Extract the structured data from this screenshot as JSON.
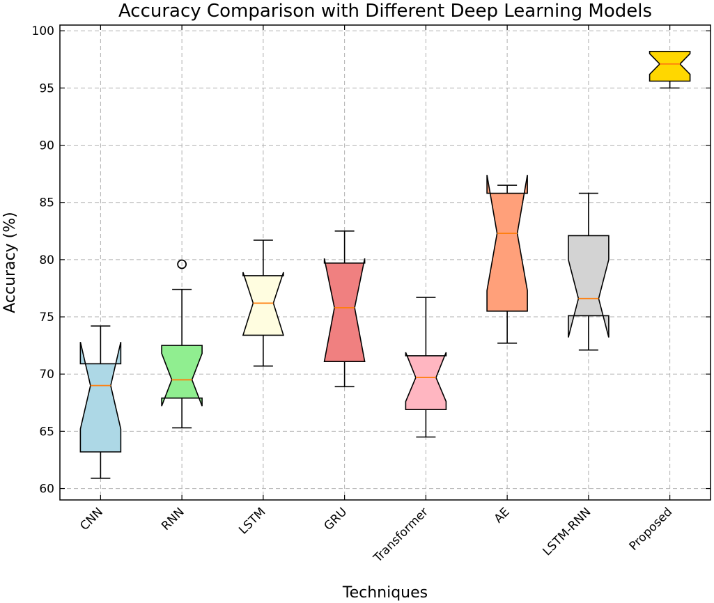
{
  "chart_data": {
    "type": "boxplot",
    "title": "Accuracy Comparison with Different Deep Learning Models",
    "xlabel": "Techniques",
    "ylabel": "Accuracy (%)",
    "ylim": [
      59,
      100.5
    ],
    "yticks": [
      60,
      65,
      70,
      75,
      80,
      85,
      90,
      95,
      100
    ],
    "grid": true,
    "notched": true,
    "categories": [
      "CNN",
      "RNN",
      "LSTM",
      "GRU",
      "Transformer",
      "AE",
      "LSTM-RNN",
      "Proposed"
    ],
    "boxes": [
      {
        "name": "CNN",
        "whisker_low": 60.9,
        "q1": 63.2,
        "notch_low": 65.2,
        "median": 69.0,
        "notch_high": 72.8,
        "q3": 70.9,
        "whisker_high": 74.2,
        "fliers": [],
        "color": "#add8e6"
      },
      {
        "name": "RNN",
        "whisker_low": 65.3,
        "q1": 67.9,
        "notch_low": 67.2,
        "median": 69.5,
        "notch_high": 71.8,
        "q3": 72.5,
        "whisker_high": 77.4,
        "fliers": [
          79.6
        ],
        "color": "#90ee90"
      },
      {
        "name": "LSTM",
        "whisker_low": 70.7,
        "q1": 73.4,
        "notch_low": 73.4,
        "median": 76.2,
        "notch_high": 78.9,
        "q3": 78.6,
        "whisker_high": 81.7,
        "fliers": [],
        "color": "#fffde0"
      },
      {
        "name": "GRU",
        "whisker_low": 68.9,
        "q1": 71.1,
        "notch_low": 71.1,
        "median": 75.8,
        "notch_high": 80.1,
        "q3": 79.7,
        "whisker_high": 82.5,
        "fliers": [],
        "color": "#f08080"
      },
      {
        "name": "Transformer",
        "whisker_low": 64.5,
        "q1": 66.9,
        "notch_low": 67.6,
        "median": 69.7,
        "notch_high": 71.9,
        "q3": 71.6,
        "whisker_high": 76.7,
        "fliers": [],
        "color": "#ffb6c1"
      },
      {
        "name": "AE",
        "whisker_low": 72.7,
        "q1": 75.5,
        "notch_low": 77.3,
        "median": 82.3,
        "notch_high": 87.4,
        "q3": 85.8,
        "whisker_high": 86.5,
        "fliers": [],
        "color": "#ffa07a"
      },
      {
        "name": "LSTM-RNN",
        "whisker_low": 72.1,
        "q1": 75.1,
        "notch_low": 73.2,
        "median": 76.6,
        "notch_high": 80.0,
        "q3": 82.1,
        "whisker_high": 85.8,
        "fliers": [],
        "color": "#d3d3d3"
      },
      {
        "name": "Proposed",
        "whisker_low": 95.0,
        "q1": 95.6,
        "notch_low": 96.2,
        "median": 97.1,
        "notch_high": 98.0,
        "q3": 98.2,
        "whisker_high": 98.2,
        "fliers": [],
        "color": "#ffd700"
      }
    ]
  }
}
